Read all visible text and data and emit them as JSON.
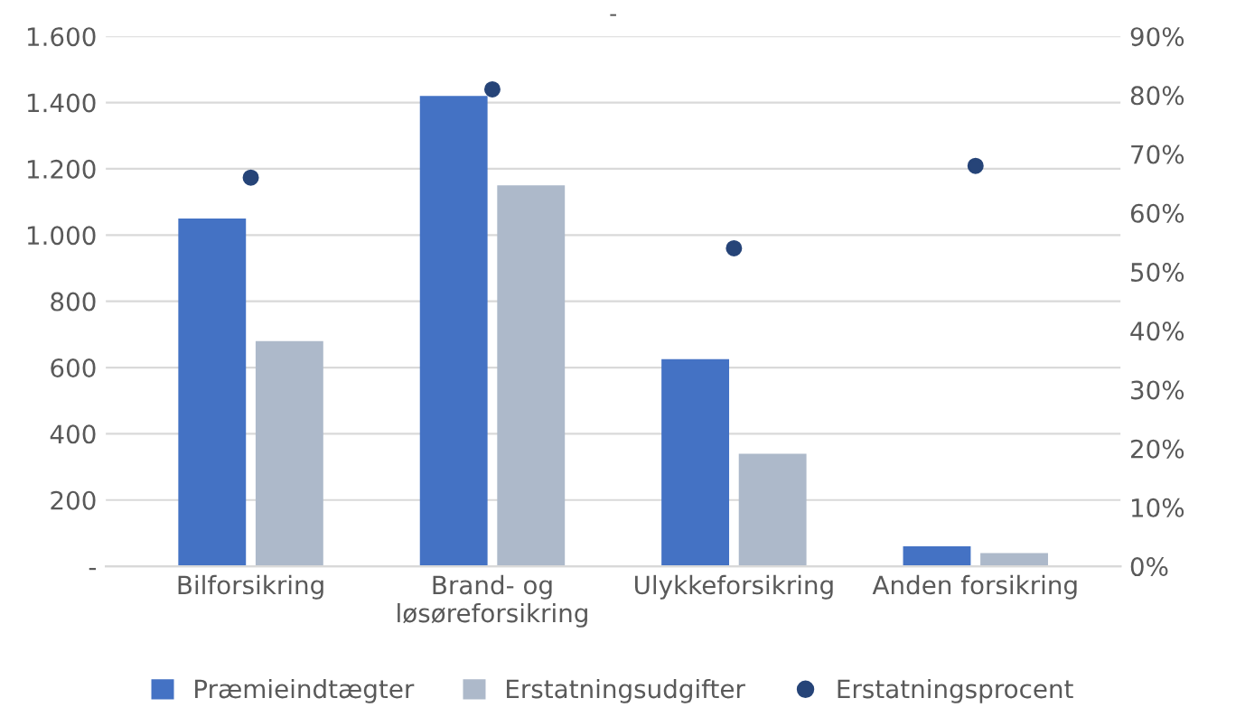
{
  "chart_data": {
    "type": "bar",
    "title": "-",
    "categories": [
      "Bilforsikring",
      "Brand- og\nløsøreforsikring",
      "Ulykkeforsikring",
      "Anden forsikring"
    ],
    "series": [
      {
        "name": "Præmieindtægter",
        "color": "#4472c4",
        "values": [
          1050,
          1420,
          625,
          60
        ]
      },
      {
        "name": "Erstatningsudgifter",
        "color": "#adb9ca",
        "values": [
          680,
          1150,
          340,
          40
        ]
      },
      {
        "name": "Erstatningsprocent",
        "type": "scatter",
        "axis": "y2",
        "marker": "circle",
        "color": "#264478",
        "values": [
          66,
          81,
          54,
          68
        ]
      }
    ],
    "ylim": [
      0,
      1600
    ],
    "yticks": [
      {
        "value": 0,
        "label": "-"
      },
      {
        "value": 200,
        "label": "200"
      },
      {
        "value": 400,
        "label": "400"
      },
      {
        "value": 600,
        "label": "600"
      },
      {
        "value": 800,
        "label": "800"
      },
      {
        "value": 1000,
        "label": "1.000"
      },
      {
        "value": 1200,
        "label": "1.200"
      },
      {
        "value": 1400,
        "label": "1.400"
      },
      {
        "value": 1600,
        "label": "1.600"
      }
    ],
    "y2lim": [
      0,
      90
    ],
    "y2ticks": [
      {
        "value": 0,
        "label": "0%"
      },
      {
        "value": 10,
        "label": "10%"
      },
      {
        "value": 20,
        "label": "20%"
      },
      {
        "value": 30,
        "label": "30%"
      },
      {
        "value": 40,
        "label": "40%"
      },
      {
        "value": 50,
        "label": "50%"
      },
      {
        "value": 60,
        "label": "60%"
      },
      {
        "value": 70,
        "label": "70%"
      },
      {
        "value": 80,
        "label": "80%"
      },
      {
        "value": 90,
        "label": "90%"
      }
    ],
    "grid": "y",
    "legend": "bottom"
  }
}
